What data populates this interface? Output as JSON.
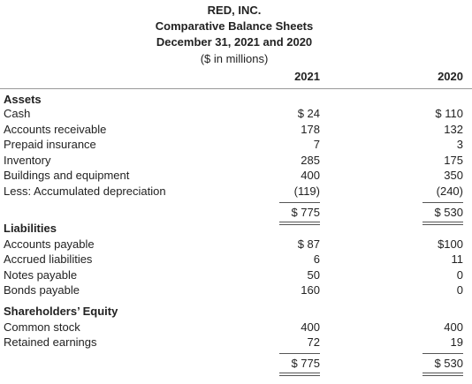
{
  "header": {
    "company": "RED, INC.",
    "title": "Comparative Balance Sheets",
    "date": "December 31, 2021 and 2020",
    "units": "($ in millions)"
  },
  "columns": [
    "2021",
    "2020"
  ],
  "rows": [
    {
      "label": "Assets"
    },
    {
      "label": "Cash",
      "values": [
        "$ 24",
        "$ 110"
      ]
    },
    {
      "label": "Accounts receivable",
      "values": [
        "178",
        "132"
      ]
    },
    {
      "label": "Prepaid insurance",
      "values": [
        "7",
        "3"
      ]
    },
    {
      "label": "Inventory",
      "values": [
        "285",
        "175"
      ]
    },
    {
      "label": "Buildings and equipment",
      "values": [
        "400",
        "350"
      ]
    },
    {
      "label": "Less: Accumulated depreciation",
      "values": [
        "(119)",
        "(240)"
      ]
    },
    {
      "values": [
        "$ 775",
        "$ 530"
      ]
    },
    {
      "label": "Liabilities"
    },
    {
      "label": "Accounts payable",
      "values": [
        "$ 87",
        "$100"
      ]
    },
    {
      "label": "Accrued liabilities",
      "values": [
        "6",
        "11"
      ]
    },
    {
      "label": "Notes payable",
      "values": [
        "50",
        "0"
      ]
    },
    {
      "label": "Bonds payable",
      "values": [
        "160",
        "0"
      ]
    },
    {
      "label": "Shareholders’ Equity"
    },
    {
      "label": "Common stock",
      "values": [
        "400",
        "400"
      ]
    },
    {
      "label": "Retained earnings",
      "values": [
        "72",
        "19"
      ]
    },
    {
      "values": [
        "$ 775",
        "$ 530"
      ]
    }
  ]
}
